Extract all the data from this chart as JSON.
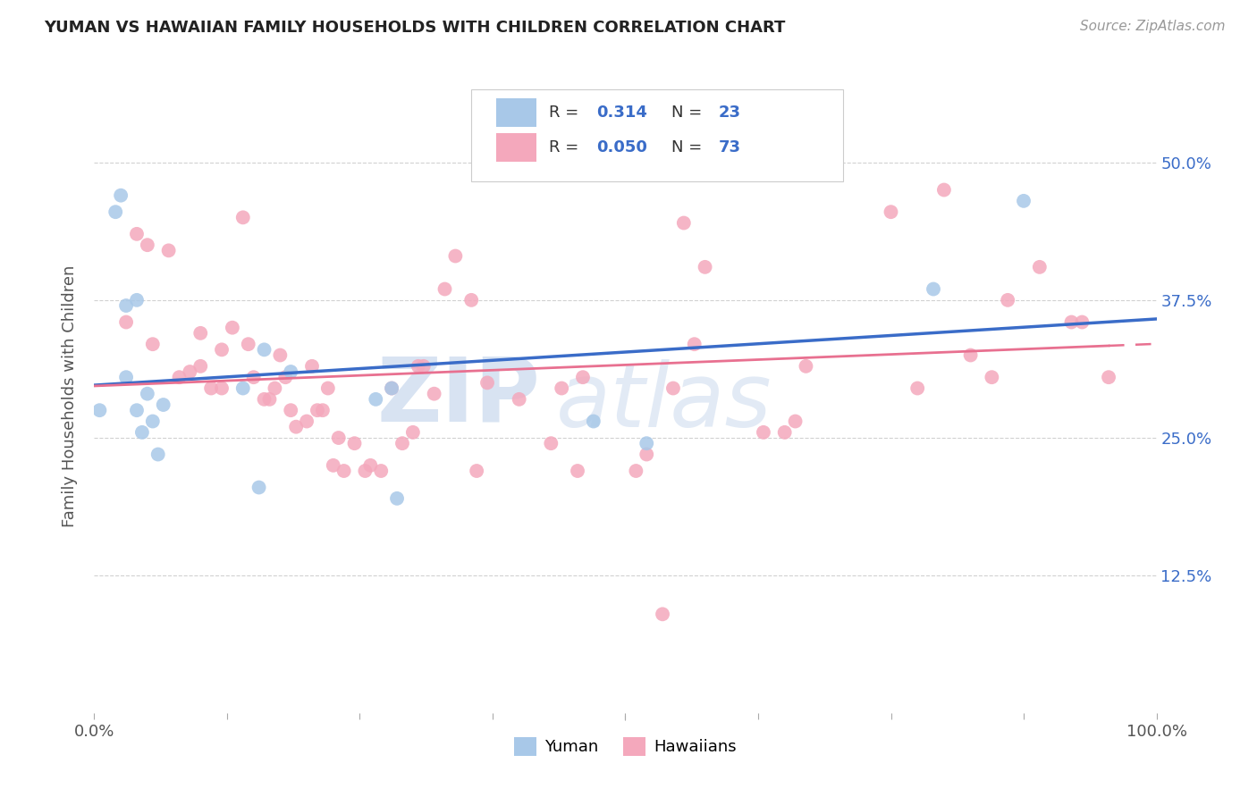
{
  "title": "YUMAN VS HAWAIIAN FAMILY HOUSEHOLDS WITH CHILDREN CORRELATION CHART",
  "source": "Source: ZipAtlas.com",
  "ylabel": "Family Households with Children",
  "ytick_labels": [
    "12.5%",
    "25.0%",
    "37.5%",
    "50.0%"
  ],
  "ytick_values": [
    0.125,
    0.25,
    0.375,
    0.5
  ],
  "yuman_R": "0.314",
  "yuman_N": "23",
  "hawaiian_R": "0.050",
  "hawaiian_N": "73",
  "yuman_color": "#a8c8e8",
  "hawaiian_color": "#f4a8bc",
  "yuman_line_color": "#3a6cc8",
  "hawaiian_line_color": "#e87090",
  "background_color": "#ffffff",
  "watermark_zip": "ZIP",
  "watermark_atlas": "atlas",
  "legend_label_yuman": "Yuman",
  "legend_label_hawaiian": "Hawaiians",
  "yuman_scatter_x": [
    0.005,
    0.02,
    0.025,
    0.03,
    0.03,
    0.04,
    0.04,
    0.045,
    0.05,
    0.055,
    0.06,
    0.065,
    0.14,
    0.155,
    0.16,
    0.185,
    0.265,
    0.28,
    0.285,
    0.47,
    0.52,
    0.79,
    0.875
  ],
  "yuman_scatter_y": [
    0.275,
    0.455,
    0.47,
    0.305,
    0.37,
    0.375,
    0.275,
    0.255,
    0.29,
    0.265,
    0.235,
    0.28,
    0.295,
    0.205,
    0.33,
    0.31,
    0.285,
    0.295,
    0.195,
    0.265,
    0.245,
    0.385,
    0.465
  ],
  "hawaiian_scatter_x": [
    0.03,
    0.04,
    0.05,
    0.055,
    0.07,
    0.08,
    0.09,
    0.1,
    0.1,
    0.11,
    0.12,
    0.12,
    0.13,
    0.14,
    0.145,
    0.15,
    0.16,
    0.165,
    0.17,
    0.175,
    0.18,
    0.185,
    0.19,
    0.2,
    0.205,
    0.21,
    0.215,
    0.22,
    0.225,
    0.23,
    0.235,
    0.245,
    0.255,
    0.26,
    0.27,
    0.28,
    0.29,
    0.3,
    0.305,
    0.31,
    0.32,
    0.33,
    0.34,
    0.355,
    0.36,
    0.37,
    0.4,
    0.43,
    0.44,
    0.455,
    0.46,
    0.51,
    0.52,
    0.535,
    0.545,
    0.555,
    0.565,
    0.575,
    0.63,
    0.65,
    0.66,
    0.67,
    0.675,
    0.75,
    0.775,
    0.8,
    0.825,
    0.845,
    0.86,
    0.89,
    0.92,
    0.93,
    0.955
  ],
  "hawaiian_scatter_y": [
    0.355,
    0.435,
    0.425,
    0.335,
    0.42,
    0.305,
    0.31,
    0.315,
    0.345,
    0.295,
    0.295,
    0.33,
    0.35,
    0.45,
    0.335,
    0.305,
    0.285,
    0.285,
    0.295,
    0.325,
    0.305,
    0.275,
    0.26,
    0.265,
    0.315,
    0.275,
    0.275,
    0.295,
    0.225,
    0.25,
    0.22,
    0.245,
    0.22,
    0.225,
    0.22,
    0.295,
    0.245,
    0.255,
    0.315,
    0.315,
    0.29,
    0.385,
    0.415,
    0.375,
    0.22,
    0.3,
    0.285,
    0.245,
    0.295,
    0.22,
    0.305,
    0.22,
    0.235,
    0.09,
    0.295,
    0.445,
    0.335,
    0.405,
    0.255,
    0.255,
    0.265,
    0.315,
    0.525,
    0.455,
    0.295,
    0.475,
    0.325,
    0.305,
    0.375,
    0.405,
    0.355,
    0.355,
    0.305
  ],
  "ylim_min": 0.0,
  "ylim_max": 0.575,
  "xlim_min": 0.0,
  "xlim_max": 1.0
}
